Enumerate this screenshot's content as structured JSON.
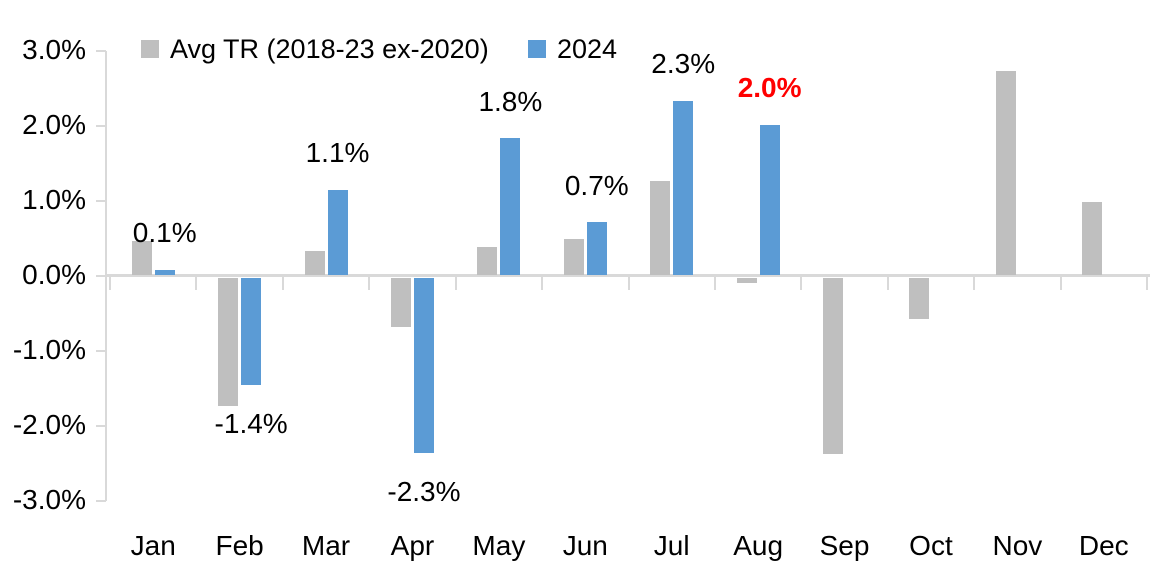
{
  "chart_data": {
    "type": "bar",
    "title": "",
    "xlabel": "",
    "ylabel": "",
    "categories": [
      "Jan",
      "Feb",
      "Mar",
      "Apr",
      "May",
      "Jun",
      "Jul",
      "Aug",
      "Sep",
      "Oct",
      "Nov",
      "Dec"
    ],
    "series": [
      {
        "name": "Avg TR (2018-23 ex-2020)",
        "color": "#bfbfbf",
        "values": [
          0.45,
          -1.7,
          0.32,
          -0.65,
          0.37,
          0.48,
          1.25,
          -0.07,
          -2.35,
          -0.55,
          2.72,
          0.97
        ]
      },
      {
        "name": "2024",
        "color": "#5b9bd5",
        "values": [
          0.07,
          -1.43,
          1.13,
          -2.33,
          1.82,
          0.7,
          2.32,
          2.0,
          null,
          null,
          null,
          null
        ],
        "data_labels": [
          {
            "text": "0.1%",
            "color": "#000000",
            "bold": false
          },
          {
            "text": "-1.4%",
            "color": "#000000",
            "bold": false
          },
          {
            "text": "1.1%",
            "color": "#000000",
            "bold": false
          },
          {
            "text": "-2.3%",
            "color": "#000000",
            "bold": false
          },
          {
            "text": "1.8%",
            "color": "#000000",
            "bold": false
          },
          {
            "text": "0.7%",
            "color": "#000000",
            "bold": false
          },
          {
            "text": "2.3%",
            "color": "#000000",
            "bold": false
          },
          {
            "text": "2.0%",
            "color": "#ff0000",
            "bold": true
          },
          null,
          null,
          null,
          null
        ]
      }
    ],
    "y_axis": {
      "min": -3,
      "max": 3,
      "step": 1,
      "tick_labels": [
        "3.0%",
        "2.0%",
        "1.0%",
        "0.0%",
        "-1.0%",
        "-2.0%",
        "-3.0%"
      ]
    },
    "legend": {
      "position": "top"
    },
    "grid": false,
    "axis_color": "#d9d9d9",
    "highlight": {
      "category": "Aug",
      "series": "2024",
      "label": "2.0%",
      "color": "#ff0000"
    }
  }
}
